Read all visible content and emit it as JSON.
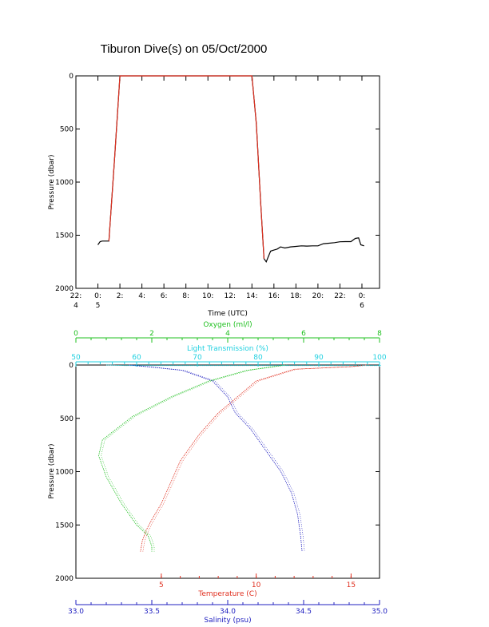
{
  "title": "Tiburon Dive(s) on 05/Oct/2000",
  "chart_data": [
    {
      "type": "line",
      "xlabel": "Time (UTC)",
      "ylabel": "Pressure (dbar)",
      "x_unit": "hours",
      "xlim": [
        -2,
        25.6
      ],
      "ylim": [
        2000,
        0
      ],
      "y_ticks": [
        "0",
        "500",
        "1000",
        "1500",
        "2000"
      ],
      "x_ticks": [
        {
          "v": -2,
          "lines": [
            "22:",
            "4"
          ]
        },
        {
          "v": 0,
          "lines": [
            "0:",
            "5"
          ]
        },
        {
          "v": 2,
          "lines": [
            "2:"
          ]
        },
        {
          "v": 4,
          "lines": [
            "4:"
          ]
        },
        {
          "v": 6,
          "lines": [
            "6:"
          ]
        },
        {
          "v": 8,
          "lines": [
            "8:"
          ]
        },
        {
          "v": 10,
          "lines": [
            "10:"
          ]
        },
        {
          "v": 12,
          "lines": [
            "12:"
          ]
        },
        {
          "v": 14,
          "lines": [
            "14:"
          ]
        },
        {
          "v": 16,
          "lines": [
            "16:"
          ]
        },
        {
          "v": 18,
          "lines": [
            "18:"
          ]
        },
        {
          "v": 20,
          "lines": [
            "20:"
          ]
        },
        {
          "v": 22,
          "lines": [
            "22:"
          ]
        },
        {
          "v": 24,
          "lines": [
            "0:",
            "6"
          ]
        }
      ],
      "colors": {
        "seafloor": "#000000",
        "dive": "#e03020"
      },
      "series": [
        {
          "key": "seafloor",
          "points": [
            [
              0.0,
              1590
            ],
            [
              0.2,
              1560
            ],
            [
              0.4,
              1555
            ],
            [
              1.0,
              1555
            ],
            [
              1.5,
              800
            ],
            [
              2.0,
              0
            ],
            [
              2.2,
              0
            ],
            [
              14.0,
              0
            ],
            [
              14.4,
              450
            ],
            [
              14.8,
              1200
            ],
            [
              15.1,
              1720
            ],
            [
              15.3,
              1750
            ],
            [
              15.5,
              1700
            ],
            [
              15.7,
              1650
            ],
            [
              16.0,
              1640
            ],
            [
              16.3,
              1630
            ],
            [
              16.6,
              1610
            ],
            [
              17.0,
              1620
            ],
            [
              17.5,
              1610
            ],
            [
              18.0,
              1605
            ],
            [
              18.5,
              1600
            ],
            [
              19.0,
              1602
            ],
            [
              19.5,
              1600
            ],
            [
              20.0,
              1600
            ],
            [
              20.5,
              1580
            ],
            [
              21.0,
              1575
            ],
            [
              21.5,
              1570
            ],
            [
              22.0,
              1562
            ],
            [
              22.5,
              1560
            ],
            [
              23.0,
              1560
            ],
            [
              23.4,
              1530
            ],
            [
              23.7,
              1525
            ],
            [
              23.9,
              1590
            ],
            [
              24.2,
              1600
            ]
          ]
        },
        {
          "key": "dive",
          "points": [
            [
              1.0,
              1555
            ],
            [
              1.5,
              800
            ],
            [
              2.0,
              0
            ],
            [
              2.2,
              0
            ],
            [
              14.0,
              0
            ],
            [
              14.4,
              450
            ],
            [
              14.8,
              1200
            ],
            [
              15.1,
              1720
            ]
          ]
        }
      ]
    },
    {
      "type": "scatter",
      "ylabel": "Pressure (dbar)",
      "ylim": [
        2000,
        0
      ],
      "y_ticks": [
        "0",
        "500",
        "1000",
        "1500",
        "2000"
      ],
      "axes": [
        {
          "key": "temperature",
          "position": "bottom",
          "label": "Temperature (C)",
          "color": "#e03020",
          "range": [
            0.5,
            16.5
          ],
          "ticks": [
            "5",
            "10",
            "15"
          ]
        },
        {
          "key": "salinity",
          "position": "bottom-2",
          "label": "Salinity (psu)",
          "color": "#2020c0",
          "range": [
            33.0,
            35.0
          ],
          "ticks": [
            "33.0",
            "33.5",
            "34.0",
            "34.5",
            "35.0"
          ]
        },
        {
          "key": "oxygen",
          "position": "top",
          "label": "Oxygen (ml/l)",
          "color": "#20c020",
          "range": [
            0,
            8
          ],
          "ticks": [
            "0",
            "2",
            "4",
            "6",
            "8"
          ]
        },
        {
          "key": "transmission",
          "position": "top-2",
          "label": "Light Transmission (%)",
          "color": "#20d0e0",
          "range": [
            50,
            100
          ],
          "ticks": [
            "50",
            "60",
            "70",
            "80",
            "90",
            "100"
          ]
        }
      ],
      "series": [
        {
          "key": "temperature",
          "points": [
            [
              15.8,
              0
            ],
            [
              15,
              15
            ],
            [
              12,
              40
            ],
            [
              10,
              150
            ],
            [
              9,
              300
            ],
            [
              8,
              450
            ],
            [
              7,
              650
            ],
            [
              6,
              900
            ],
            [
              5.5,
              1100
            ],
            [
              5,
              1300
            ],
            [
              4.5,
              1450
            ],
            [
              4.2,
              1550
            ],
            [
              4.0,
              1650
            ],
            [
              3.9,
              1750
            ]
          ]
        },
        {
          "key": "salinity",
          "points": [
            [
              33.35,
              0
            ],
            [
              33.5,
              20
            ],
            [
              33.7,
              50
            ],
            [
              33.9,
              150
            ],
            [
              34.0,
              300
            ],
            [
              34.05,
              450
            ],
            [
              34.15,
              600
            ],
            [
              34.25,
              800
            ],
            [
              34.35,
              1000
            ],
            [
              34.42,
              1200
            ],
            [
              34.46,
              1400
            ],
            [
              34.48,
              1600
            ],
            [
              34.49,
              1750
            ]
          ]
        },
        {
          "key": "oxygen",
          "points": [
            [
              5.5,
              0
            ],
            [
              4.5,
              50
            ],
            [
              3.5,
              150
            ],
            [
              2.5,
              300
            ],
            [
              1.5,
              480
            ],
            [
              0.7,
              700
            ],
            [
              0.6,
              850
            ],
            [
              0.8,
              1050
            ],
            [
              1.2,
              1300
            ],
            [
              1.6,
              1500
            ],
            [
              1.9,
              1600
            ],
            [
              2.0,
              1700
            ],
            [
              2.0,
              1750
            ]
          ]
        },
        {
          "key": "transmission",
          "points": [
            [
              55,
              0
            ],
            [
              58,
              5
            ],
            [
              62,
              5
            ],
            [
              65,
              5
            ],
            [
              70,
              5
            ],
            [
              75,
              5
            ],
            [
              80,
              5
            ],
            [
              85,
              5
            ],
            [
              90,
              5
            ],
            [
              95,
              5
            ],
            [
              100,
              5
            ]
          ]
        }
      ]
    }
  ]
}
